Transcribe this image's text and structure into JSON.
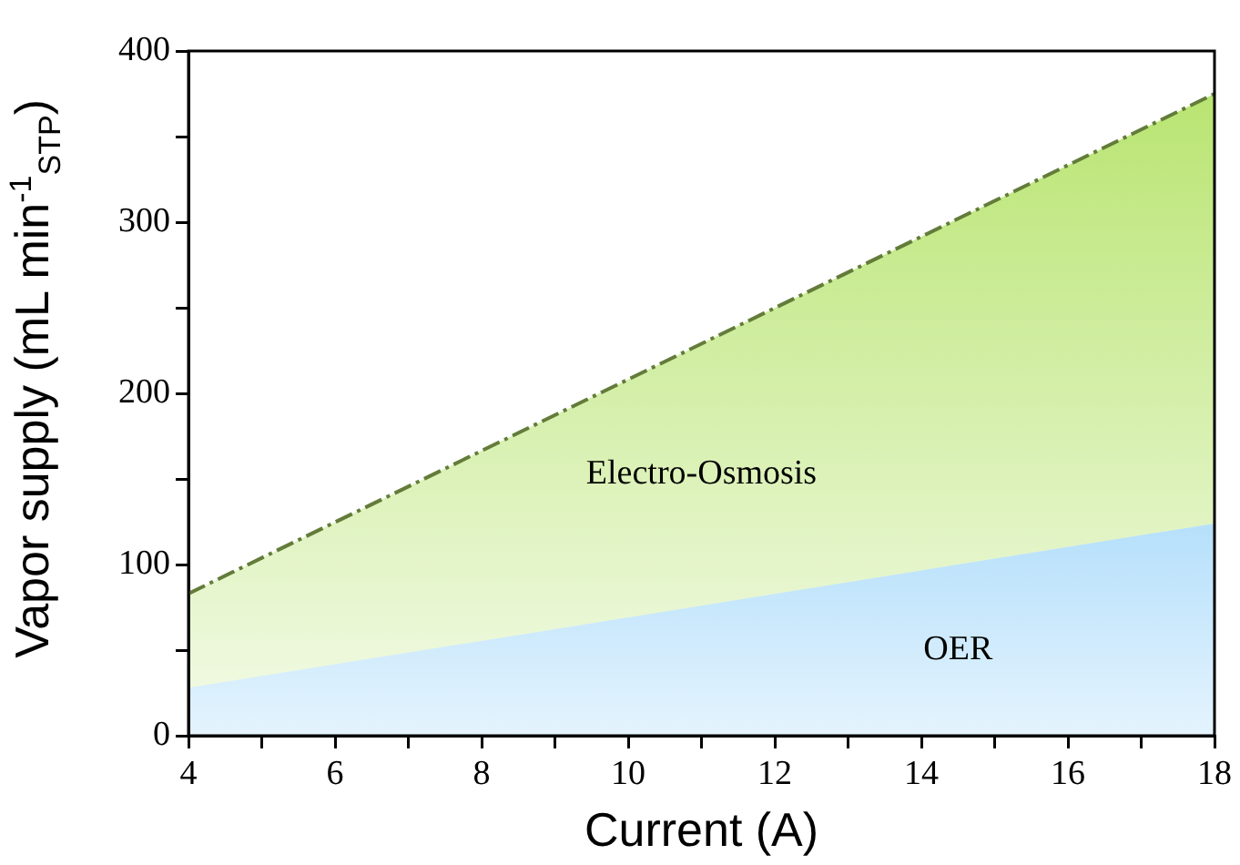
{
  "chart_data": {
    "type": "area",
    "stacked": true,
    "xlabel": "Current (A)",
    "ylabel": "Vapor supply (mL min$^{-1}$$_{STP}$)",
    "x": [
      4,
      18
    ],
    "series": [
      {
        "name": "OER",
        "color": "#4db3f5",
        "values": [
          28,
          124
        ]
      },
      {
        "name": "Electro-Osmosis",
        "color": "#b5e36a",
        "values": [
          55,
          251
        ],
        "line_style": "dashed"
      }
    ],
    "xlim": [
      4,
      18
    ],
    "xticks": [
      4,
      {
        "value": 5,
        "label": null
      },
      6,
      {
        "value": 7,
        "label": null
      },
      8,
      {
        "value": 9,
        "label": null
      },
      10,
      {
        "value": 11,
        "label": null
      },
      12,
      {
        "value": 13,
        "label": null
      },
      14,
      {
        "value": 15,
        "label": null
      },
      16,
      {
        "value": 17,
        "label": null
      },
      18
    ],
    "ylim": [
      0,
      400
    ],
    "yticks": [
      0,
      {
        "value": 50,
        "label": null
      },
      100,
      {
        "value": 150,
        "label": null
      },
      200,
      {
        "value": 250,
        "label": null
      },
      300,
      {
        "value": 350,
        "label": null
      },
      400
    ],
    "grid": false,
    "legend": false
  }
}
